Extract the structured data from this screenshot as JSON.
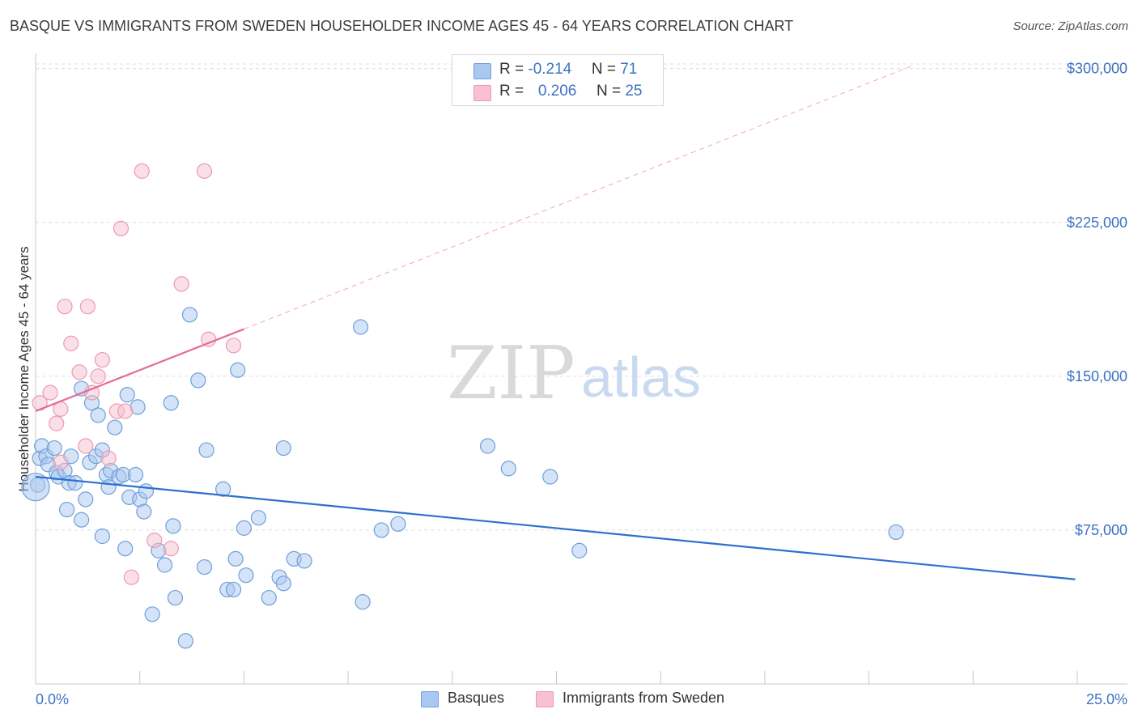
{
  "title": "BASQUE VS IMMIGRANTS FROM SWEDEN HOUSEHOLDER INCOME AGES 45 - 64 YEARS CORRELATION CHART",
  "source": "Source: ZipAtlas.com",
  "watermark": {
    "part1": "ZIP",
    "part2": "atlas"
  },
  "stats": {
    "basques": {
      "r_label": "R = ",
      "r_value": "-0.214",
      "n_label": "N = ",
      "n_value": "71"
    },
    "sweden": {
      "r_label": "R = ",
      "r_value": "0.206",
      "n_label": "N = ",
      "n_value": "25"
    }
  },
  "legend": {
    "basques": "Basques",
    "sweden": "Immigrants from Sweden"
  },
  "colors": {
    "basques_fill": "#a9c8f0",
    "basques_stroke": "#6f9fd8",
    "basques_line": "#2f6fd0",
    "sweden_fill": "#f8c0d0",
    "sweden_stroke": "#ec9ab4",
    "sweden_line": "#e46c96",
    "accent_text": "#3e73c4",
    "grid": "#dcdcdc"
  },
  "chart_data": {
    "type": "scatter",
    "xlabel": "",
    "ylabel": "Householder Income Ages 45 - 64 years",
    "xlim": [
      0,
      25
    ],
    "ylim": [
      0,
      305000
    ],
    "x_tick_labels": {
      "min": "0.0%",
      "max": "25.0%"
    },
    "y_ticks": [
      {
        "value": 75000,
        "label": "$75,000"
      },
      {
        "value": 150000,
        "label": "$150,000"
      },
      {
        "value": 225000,
        "label": "$225,000"
      },
      {
        "value": 300000,
        "label": "$300,000"
      }
    ],
    "grid": true,
    "legend_position": "bottom",
    "series": [
      {
        "name": "Basques",
        "color": "#a9c8f0",
        "points": [
          [
            0.05,
            97000
          ],
          [
            0.1,
            110000
          ],
          [
            0.15,
            116000
          ],
          [
            0.25,
            111000
          ],
          [
            0.3,
            107000
          ],
          [
            0.45,
            115000
          ],
          [
            0.5,
            103000
          ],
          [
            0.55,
            101000
          ],
          [
            0.7,
            104000
          ],
          [
            0.75,
            85000
          ],
          [
            0.8,
            98000
          ],
          [
            0.85,
            111000
          ],
          [
            0.95,
            98000
          ],
          [
            1.1,
            80000
          ],
          [
            1.1,
            144000
          ],
          [
            1.2,
            90000
          ],
          [
            1.3,
            108000
          ],
          [
            1.35,
            137000
          ],
          [
            1.45,
            111000
          ],
          [
            1.5,
            131000
          ],
          [
            1.6,
            114000
          ],
          [
            1.6,
            72000
          ],
          [
            1.7,
            102000
          ],
          [
            1.75,
            96000
          ],
          [
            1.8,
            104000
          ],
          [
            1.9,
            125000
          ],
          [
            2.0,
            101000
          ],
          [
            2.1,
            102000
          ],
          [
            2.15,
            66000
          ],
          [
            2.2,
            141000
          ],
          [
            2.25,
            91000
          ],
          [
            2.4,
            102000
          ],
          [
            2.45,
            135000
          ],
          [
            2.5,
            90000
          ],
          [
            2.6,
            84000
          ],
          [
            2.65,
            94000
          ],
          [
            2.8,
            34000
          ],
          [
            2.95,
            65000
          ],
          [
            3.1,
            58000
          ],
          [
            3.25,
            137000
          ],
          [
            3.3,
            77000
          ],
          [
            3.35,
            42000
          ],
          [
            3.6,
            21000
          ],
          [
            3.7,
            180000
          ],
          [
            3.9,
            148000
          ],
          [
            4.05,
            57000
          ],
          [
            4.1,
            114000
          ],
          [
            4.5,
            95000
          ],
          [
            4.6,
            46000
          ],
          [
            4.75,
            46000
          ],
          [
            4.8,
            61000
          ],
          [
            4.85,
            153000
          ],
          [
            5.0,
            76000
          ],
          [
            5.05,
            53000
          ],
          [
            5.35,
            81000
          ],
          [
            5.6,
            42000
          ],
          [
            5.85,
            52000
          ],
          [
            5.95,
            115000
          ],
          [
            5.95,
            49000
          ],
          [
            6.2,
            61000
          ],
          [
            6.45,
            60000
          ],
          [
            7.8,
            174000
          ],
          [
            7.85,
            40000
          ],
          [
            8.3,
            75000
          ],
          [
            8.7,
            78000
          ],
          [
            10.85,
            116000
          ],
          [
            11.35,
            105000
          ],
          [
            12.35,
            101000
          ],
          [
            13.05,
            65000
          ],
          [
            20.65,
            74000
          ],
          [
            0.0,
            96000
          ]
        ]
      },
      {
        "name": "Immigrants from Sweden",
        "color": "#f8c0d0",
        "points": [
          [
            0.1,
            137000
          ],
          [
            0.35,
            142000
          ],
          [
            0.5,
            127000
          ],
          [
            0.6,
            134000
          ],
          [
            0.6,
            108000
          ],
          [
            0.7,
            184000
          ],
          [
            0.85,
            166000
          ],
          [
            1.05,
            152000
          ],
          [
            1.2,
            116000
          ],
          [
            1.25,
            184000
          ],
          [
            1.35,
            142000
          ],
          [
            1.5,
            150000
          ],
          [
            1.6,
            158000
          ],
          [
            1.75,
            110000
          ],
          [
            1.95,
            133000
          ],
          [
            2.05,
            222000
          ],
          [
            2.15,
            133000
          ],
          [
            2.3,
            52000
          ],
          [
            2.55,
            250000
          ],
          [
            2.85,
            70000
          ],
          [
            3.25,
            66000
          ],
          [
            3.5,
            195000
          ],
          [
            4.05,
            250000
          ],
          [
            4.15,
            168000
          ],
          [
            4.75,
            165000
          ]
        ]
      }
    ],
    "trend_lines": [
      {
        "series": "Basques",
        "x": [
          0,
          24.95
        ],
        "y": [
          101000,
          51000
        ],
        "style": "solid"
      },
      {
        "series": "Immigrants from Sweden",
        "solid_x": [
          0,
          5.0
        ],
        "solid_y": [
          133000,
          173000
        ],
        "dashed_x": [
          5.0,
          21.0
        ],
        "dashed_y": [
          173000,
          301000
        ]
      }
    ]
  }
}
